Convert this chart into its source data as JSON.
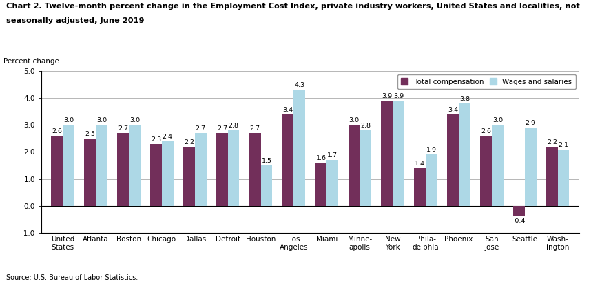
{
  "title_line1": "Chart 2. Twelve-month percent change in the Employment Cost Index, private industry workers, United States and localities, not",
  "title_line2": "seasonally adjusted, June 2019",
  "ylabel": "Percent change",
  "source": "Source: U.S. Bureau of Labor Statistics.",
  "categories": [
    "United\nStates",
    "Atlanta",
    "Boston",
    "Chicago",
    "Dallas",
    "Detroit",
    "Houston",
    "Los\nAngeles",
    "Miami",
    "Minne-\napolis",
    "New\nYork",
    "Phila-\ndelphia",
    "Phoenix",
    "San\nJose",
    "Seattle",
    "Wash-\nington"
  ],
  "total_compensation": [
    2.6,
    2.5,
    2.7,
    2.3,
    2.2,
    2.7,
    2.7,
    3.4,
    1.6,
    3.0,
    3.9,
    1.4,
    3.4,
    2.6,
    -0.4,
    2.2
  ],
  "wages_and_salaries": [
    3.0,
    3.0,
    3.0,
    2.4,
    2.7,
    2.8,
    1.5,
    4.3,
    1.7,
    2.8,
    3.9,
    1.9,
    3.8,
    3.0,
    2.9,
    2.1
  ],
  "color_total": "#722F5A",
  "color_wages": "#ADD8E6",
  "ylim": [
    -1.0,
    5.0
  ],
  "yticks": [
    -1.0,
    0.0,
    1.0,
    2.0,
    3.0,
    4.0,
    5.0
  ],
  "legend_labels": [
    "Total compensation",
    "Wages and salaries"
  ],
  "bar_width": 0.35,
  "label_fontsize": 6.8,
  "title_fontsize": 8.2,
  "axis_fontsize": 7.5,
  "source_fontsize": 7
}
